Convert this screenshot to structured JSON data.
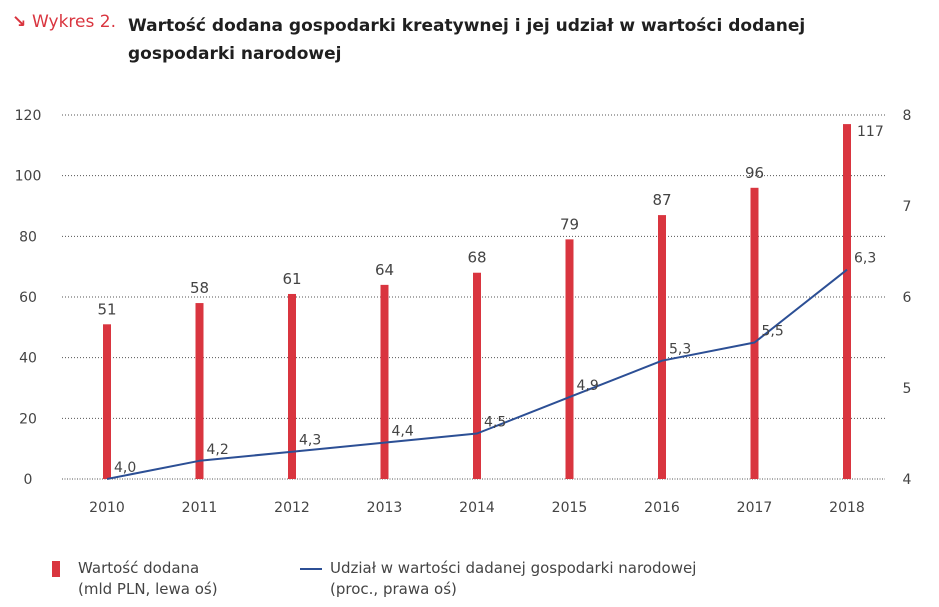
{
  "title": {
    "arrow": "↘",
    "prefix": "Wykres 2.",
    "text": "Wartość dodana gospodarki kreatywnej i jej udział w wartości dodanej gospodarki narodowej"
  },
  "colors": {
    "bar": "#d9353f",
    "line": "#2c4f95",
    "grid": "#555555",
    "text": "#444444"
  },
  "legend": {
    "bar_line1": "Wartość dodana",
    "bar_line2": "(mld PLN, lewa oś)",
    "line_line1": "Udział w wartości dadanej gospodarki narodowej",
    "line_line2": "(proc., prawa oś)"
  },
  "chart_data": {
    "type": "bar",
    "title": "Wartość dodana gospodarki kreatywnej i jej udział w wartości dodanej gospodarki narodowej",
    "categories": [
      "2010",
      "2011",
      "2012",
      "2013",
      "2014",
      "2015",
      "2016",
      "2017",
      "2018"
    ],
    "series": [
      {
        "name": "Wartość dodana (mld PLN, lewa oś)",
        "type": "bar",
        "axis": "left",
        "values": [
          51,
          58,
          61,
          64,
          68,
          79,
          87,
          96,
          117
        ],
        "labels": [
          "51",
          "58",
          "61",
          "64",
          "68",
          "79",
          "87",
          "96",
          "117"
        ]
      },
      {
        "name": "Udział w wartości dadanej gospodarki narodowej (proc., prawa oś)",
        "type": "line",
        "axis": "right",
        "values": [
          4.0,
          4.2,
          4.3,
          4.4,
          4.5,
          4.9,
          5.3,
          5.5,
          6.3
        ],
        "labels": [
          "4,0",
          "4,2",
          "4,3",
          "4,4",
          "4,5",
          "4,9",
          "5,3",
          "5,5",
          "6,3"
        ]
      }
    ],
    "y_left": {
      "min": 0,
      "max": 120,
      "ticks": [
        0,
        20,
        40,
        60,
        80,
        100,
        120
      ]
    },
    "y_right": {
      "min": 4,
      "max": 8,
      "ticks": [
        4,
        5,
        6,
        7,
        8
      ]
    },
    "grid": "dotted-horizontal",
    "legend_position": "bottom"
  }
}
